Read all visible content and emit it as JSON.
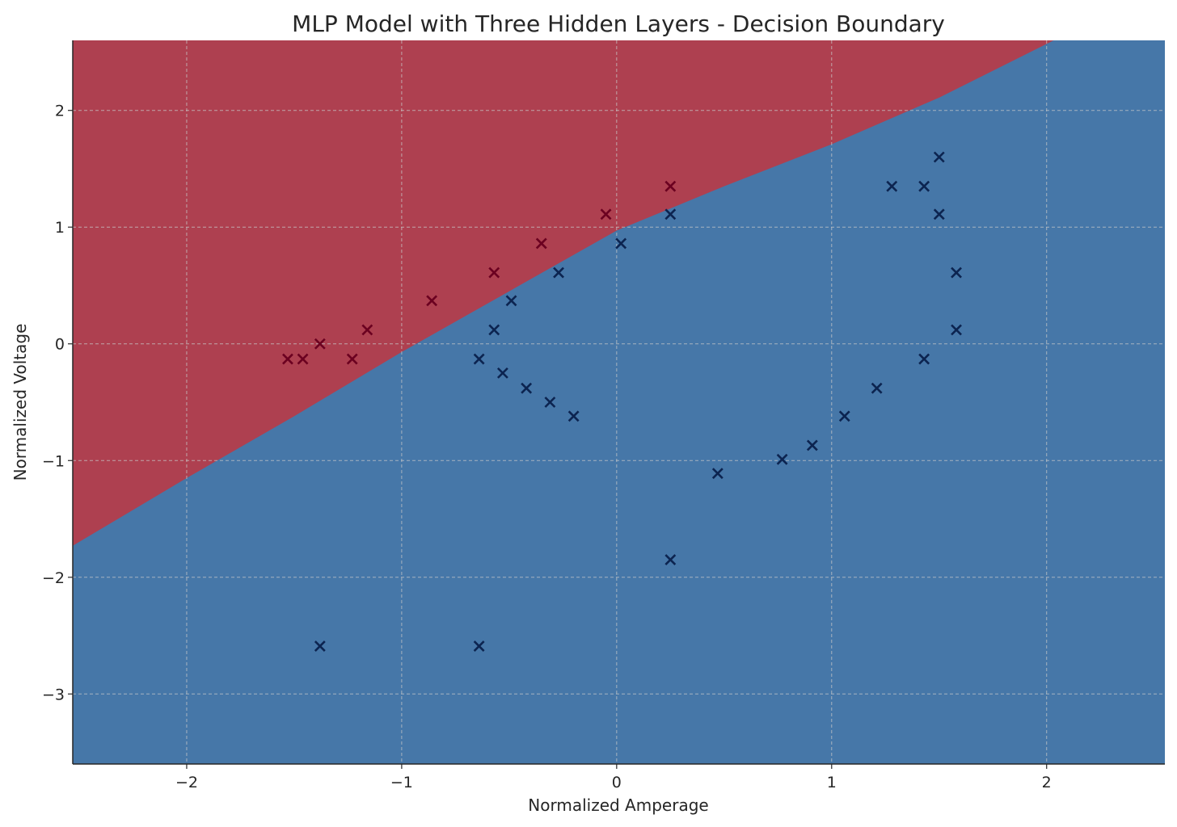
{
  "chart_data": {
    "type": "scatter",
    "title": "MLP Model with Three Hidden Layers - Decision Boundary",
    "xlabel": "Normalized Amperage",
    "ylabel": "Normalized Voltage",
    "xlim": [
      -2.53,
      2.55
    ],
    "ylim": [
      -3.6,
      2.6
    ],
    "xticks": [
      -2,
      -1,
      0,
      1,
      2
    ],
    "yticks": [
      -3,
      -2,
      -1,
      0,
      1,
      2
    ],
    "grid": true,
    "legend": "none",
    "marker": "x",
    "colors": {
      "region_class_0": "#ae4050",
      "region_class_1": "#4677a8",
      "points_class_0": "#6b0020",
      "points_class_1": "#0c2450",
      "text": "#262626"
    },
    "decision_boundary": {
      "x": [
        -2.53,
        -2.0,
        -1.5,
        -1.0,
        -0.5,
        0.0,
        0.5,
        1.0,
        1.5,
        2.0
      ],
      "y": [
        -1.73,
        -1.15,
        -0.62,
        -0.07,
        0.45,
        0.97,
        1.35,
        1.71,
        2.11,
        2.57
      ]
    },
    "series": [
      {
        "class": 0,
        "x": [
          -1.53,
          -1.46,
          -1.38,
          -1.23,
          -1.16,
          -0.86,
          -0.57,
          -0.35,
          -0.05,
          0.25
        ],
        "y": [
          -0.13,
          -0.13,
          0.0,
          -0.13,
          0.12,
          0.37,
          0.61,
          0.86,
          1.11,
          1.35
        ]
      },
      {
        "class": 1,
        "x": [
          0.02,
          0.25,
          -0.27,
          -0.49,
          -0.57,
          -0.64,
          -0.53,
          -0.42,
          -0.31,
          -0.2,
          0.47,
          0.77,
          0.91,
          1.06,
          1.21,
          1.43,
          1.58,
          1.58,
          1.28,
          1.43,
          1.5,
          1.5,
          0.25,
          -1.38,
          -0.64
        ],
        "y": [
          0.86,
          1.11,
          0.61,
          0.37,
          0.12,
          -0.13,
          -0.25,
          -0.38,
          -0.5,
          -0.62,
          -1.11,
          -0.99,
          -0.87,
          -0.62,
          -0.38,
          -0.13,
          0.12,
          0.61,
          1.35,
          1.35,
          1.11,
          1.6,
          -1.85,
          -2.59,
          -2.59
        ]
      }
    ]
  }
}
